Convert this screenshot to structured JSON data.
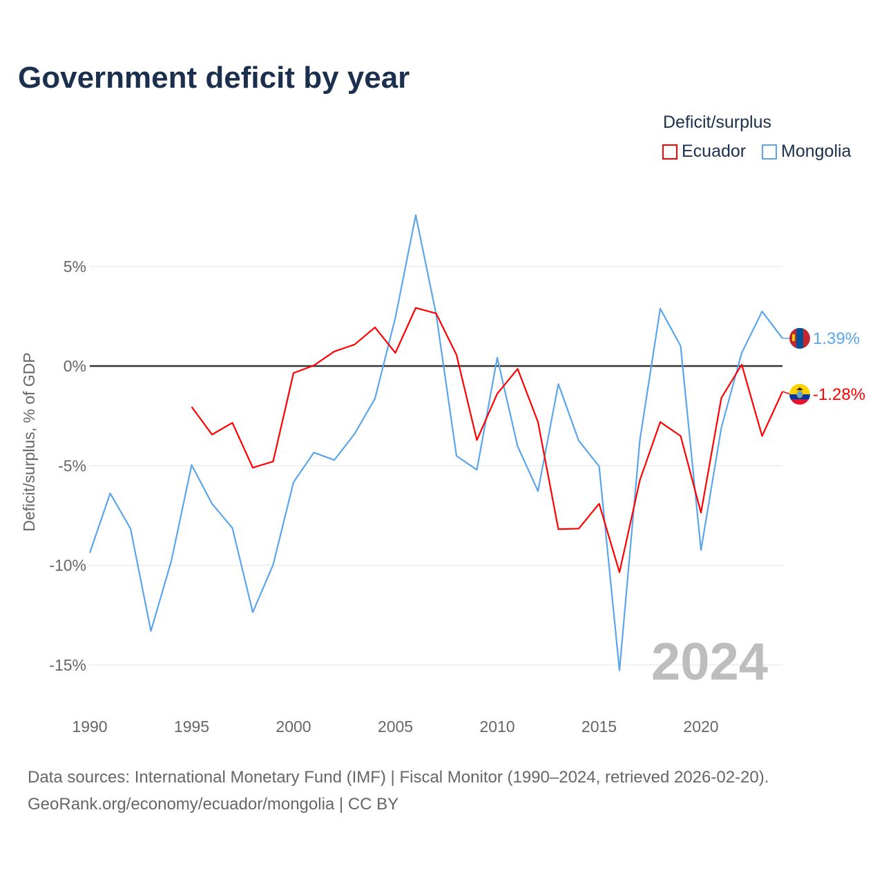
{
  "title": "Government deficit by year",
  "legend": {
    "title": "Deficit/surplus",
    "items": [
      {
        "label": "Ecuador",
        "color": "#ff0000"
      },
      {
        "label": "Mongolia",
        "color": "#5aa5ec"
      }
    ]
  },
  "footer": {
    "line1": "Data sources: International Monetary Fund (IMF) | Fiscal Monitor (1990–2024, retrieved 2026-02-20).",
    "line2": "GeoRank.org/economy/ecuador/mongolia | CC BY"
  },
  "chart_data": {
    "type": "line",
    "title": "Government deficit by year",
    "xlabel": "",
    "ylabel": "Deficit/surplus, % of GDP",
    "xlim": [
      1990,
      2024
    ],
    "ylim": [
      -17,
      8
    ],
    "yticks": [
      5,
      0,
      -5,
      -10,
      -15
    ],
    "ytick_labels": [
      "5%",
      "0%",
      "-5%",
      "-10%",
      "-15%"
    ],
    "xticks": [
      1990,
      1995,
      2000,
      2005,
      2010,
      2015,
      2020
    ],
    "xtick_labels": [
      "1990",
      "1995",
      "2000",
      "2005",
      "2010",
      "2015",
      "2020"
    ],
    "watermark_year": "2024",
    "series": [
      {
        "name": "Ecuador",
        "color": "#ff0000",
        "end_label": "-1.28%",
        "x": [
          1995,
          1996,
          1997,
          1998,
          1999,
          2000,
          2001,
          2002,
          2003,
          2004,
          2005,
          2006,
          2007,
          2008,
          2009,
          2010,
          2011,
          2012,
          2013,
          2014,
          2015,
          2016,
          2017,
          2018,
          2019,
          2020,
          2021,
          2022,
          2023,
          2024
        ],
        "values": [
          -2.05,
          -3.44,
          -2.85,
          -5.1,
          -4.79,
          -0.35,
          0.03,
          0.73,
          1.08,
          1.94,
          0.66,
          2.92,
          2.64,
          0.56,
          -3.72,
          -1.39,
          -0.14,
          -2.81,
          -8.19,
          -8.16,
          -6.91,
          -10.35,
          -5.73,
          -2.81,
          -3.51,
          -7.36,
          -1.6,
          0.07,
          -3.51,
          -1.28
        ]
      },
      {
        "name": "Mongolia",
        "color": "#5aa5ec",
        "end_label": "1.39%",
        "x": [
          1990,
          1991,
          1992,
          1993,
          1994,
          1995,
          1996,
          1997,
          1998,
          1999,
          2000,
          2001,
          2002,
          2003,
          2004,
          2005,
          2006,
          2007,
          2008,
          2009,
          2010,
          2011,
          2012,
          2013,
          2014,
          2015,
          2016,
          2017,
          2018,
          2019,
          2020,
          2021,
          2022,
          2023,
          2024
        ],
        "values": [
          -9.38,
          -6.39,
          -8.16,
          -13.3,
          -9.79,
          -4.97,
          -6.91,
          -8.13,
          -12.36,
          -9.97,
          -5.83,
          -4.34,
          -4.72,
          -3.4,
          -1.63,
          2.43,
          7.57,
          2.6,
          -4.51,
          -5.21,
          0.42,
          -4.03,
          -6.28,
          -0.9,
          -3.75,
          -5.03,
          -15.28,
          -3.72,
          2.88,
          1.01,
          -9.24,
          -3.09,
          0.66,
          2.74,
          1.39
        ]
      }
    ]
  }
}
